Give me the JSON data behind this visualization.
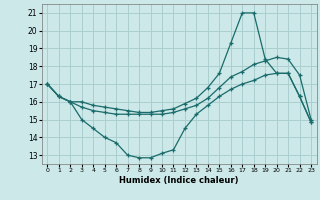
{
  "xlabel": "Humidex (Indice chaleur)",
  "xlim": [
    -0.5,
    23.5
  ],
  "ylim": [
    12.5,
    21.5
  ],
  "xticks": [
    0,
    1,
    2,
    3,
    4,
    5,
    6,
    7,
    8,
    9,
    10,
    11,
    12,
    13,
    14,
    15,
    16,
    17,
    18,
    19,
    20,
    21,
    22,
    23
  ],
  "yticks": [
    13,
    14,
    15,
    16,
    17,
    18,
    19,
    20,
    21
  ],
  "bg_color": "#cce8e8",
  "grid_color": "#aacece",
  "line_color": "#1a6b6b",
  "line1_x": [
    0,
    1,
    2,
    3,
    4,
    5,
    6,
    7,
    8,
    9,
    10,
    11,
    12,
    13,
    14,
    15,
    16,
    17,
    18,
    19,
    20,
    21,
    22,
    23
  ],
  "line1_y": [
    17.0,
    16.3,
    16.0,
    15.0,
    14.5,
    14.0,
    13.7,
    13.0,
    12.85,
    12.85,
    13.1,
    13.3,
    14.5,
    15.3,
    15.8,
    16.3,
    16.7,
    17.0,
    17.2,
    17.5,
    17.6,
    17.6,
    16.3,
    14.85
  ],
  "line2_x": [
    0,
    1,
    2,
    3,
    4,
    5,
    6,
    7,
    8,
    9,
    10,
    11,
    12,
    13,
    14,
    15,
    16,
    17,
    18,
    19,
    20,
    21,
    22,
    23
  ],
  "line2_y": [
    17.0,
    16.3,
    16.0,
    15.7,
    15.5,
    15.4,
    15.3,
    15.3,
    15.3,
    15.3,
    15.3,
    15.4,
    15.6,
    15.8,
    16.2,
    16.8,
    17.4,
    17.7,
    18.1,
    18.3,
    18.5,
    18.4,
    17.5,
    15.0
  ],
  "line3_x": [
    0,
    1,
    2,
    3,
    4,
    5,
    6,
    7,
    8,
    9,
    10,
    11,
    12,
    13,
    14,
    15,
    16,
    17,
    18,
    19,
    20,
    21,
    22,
    23
  ],
  "line3_y": [
    17.0,
    16.3,
    16.0,
    16.0,
    15.8,
    15.7,
    15.6,
    15.5,
    15.4,
    15.4,
    15.5,
    15.6,
    15.9,
    16.2,
    16.8,
    17.6,
    19.3,
    21.0,
    21.0,
    18.4,
    17.6,
    17.6,
    16.3,
    14.85
  ]
}
